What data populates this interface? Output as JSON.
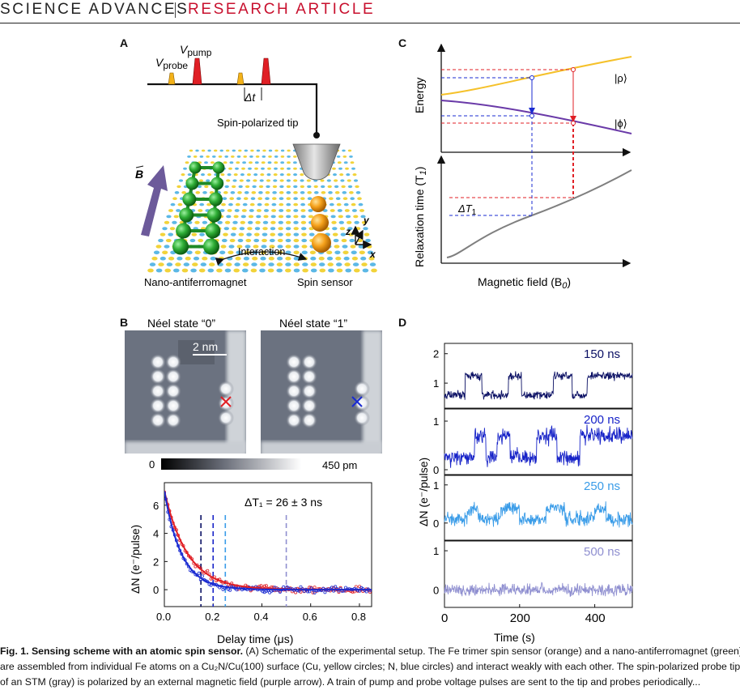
{
  "header": {
    "journal": "SCIENCE ADVANCES",
    "type": "RESEARCH ARTICLE"
  },
  "panels": {
    "a": "A",
    "b": "B",
    "c": "C",
    "d": "D"
  },
  "panelA": {
    "v": "V",
    "probe_sub": "probe",
    "pump_sub": "pump",
    "dt": "Δt",
    "tip": "Spin-polarized tip",
    "b_field": "B",
    "interaction": "Interaction",
    "afm": "Nano-antiferromagnet",
    "sensor": "Spin sensor",
    "axes": {
      "x": "x",
      "y": "y",
      "z": "z"
    }
  },
  "panelB": {
    "state0": "Néel state “0”",
    "state1": "Néel state “1”",
    "scalebar": "2 nm",
    "cb_min": "0",
    "cb_max": "450 pm",
    "marker0_color": "#e01f25",
    "marker1_color": "#1a2bd1"
  },
  "panelC": {
    "energy_label": "Energy",
    "rho": "|ρ⟩",
    "phi": "|ϕ⟩",
    "t1_label": "Relaxation time (T",
    "t1_sub": "1",
    "t1_close": ")",
    "dt1": "ΔT",
    "dt1_sub": "1",
    "xlabel": "Magnetic field (B",
    "xlabel_sub": "0",
    "xlabel_close": ")"
  },
  "chart_data": [
    {
      "type": "scatter",
      "xlabel": "Delay time (μs)",
      "ylabel": "ΔN (e⁻/pulse)",
      "annotation": "ΔT₁ = 26 ± 3 ns",
      "xlim": [
        0,
        0.85
      ],
      "ylim": [
        -1.2,
        7.6
      ],
      "xticks": [
        "0.0",
        "0.2",
        "0.4",
        "0.6",
        "0.8"
      ],
      "yticks": [
        "0",
        "2",
        "4",
        "6"
      ],
      "series": [
        {
          "color": "#e01f25",
          "y0": 7.0,
          "tau_us": 0.095
        },
        {
          "color": "#1a2bd1",
          "y0": 7.0,
          "tau_us": 0.07
        }
      ],
      "markers_us": [
        0.15,
        0.2,
        0.25,
        0.5
      ],
      "marker_colors": [
        "#0b1064",
        "#1723c8",
        "#3a9ce8",
        "#8f8fd0"
      ]
    },
    {
      "type": "line",
      "xlabel": "Time (s)",
      "ylabel": "ΔN (e⁻/pulse)",
      "xlim": [
        0,
        500
      ],
      "xticks": [
        "0",
        "200",
        "400"
      ],
      "series": [
        {
          "name": "150 ns",
          "color": "#0b1064",
          "yticks": [
            "2",
            "1"
          ],
          "ylim": [
            0.15,
            2.35
          ],
          "low": 0.6,
          "high": 1.25,
          "noise": 0.12,
          "switches": [
            55,
            100,
            170,
            205,
            290,
            340,
            380
          ]
        },
        {
          "name": "200 ns",
          "color": "#1723c8",
          "yticks": [
            "1",
            "0"
          ],
          "ylim": [
            -0.1,
            1.25
          ],
          "low": 0.25,
          "high": 0.7,
          "noise": 0.14,
          "switches": [
            80,
            110,
            140,
            175,
            245,
            300,
            360
          ]
        },
        {
          "name": "250 ns",
          "color": "#3a9ce8",
          "yticks": [
            "1",
            "0"
          ],
          "ylim": [
            -0.45,
            1.25
          ],
          "low": 0.1,
          "high": 0.4,
          "noise": 0.16,
          "switches": [
            60,
            90,
            150,
            200,
            270,
            320,
            400,
            430
          ]
        },
        {
          "name": "500 ns",
          "color": "#8f8fd0",
          "yticks": [
            "1",
            "0"
          ],
          "ylim": [
            -0.45,
            1.25
          ],
          "low": 0.0,
          "high": 0.0,
          "noise": 0.13,
          "switches": []
        }
      ]
    }
  ],
  "caption": {
    "fig": "Fig. 1.  Sensing scheme with an atomic spin sensor.",
    "line1_rest": " (A) Schematic of the experimental setup. The Fe trimer spin sensor (orange) and a nano-antiferromagnet (green)",
    "line2": "are assembled from individual Fe atoms on a Cu₂N/Cu(100) surface (Cu, yellow circles; N, blue circles) and interact weakly with each other. The spin-polarized probe tip",
    "line3": "of an STM (gray) is polarized by an external magnetic field (purple arrow). A train of pump and probe voltage pulses are sent to the tip and probes periodically..."
  }
}
